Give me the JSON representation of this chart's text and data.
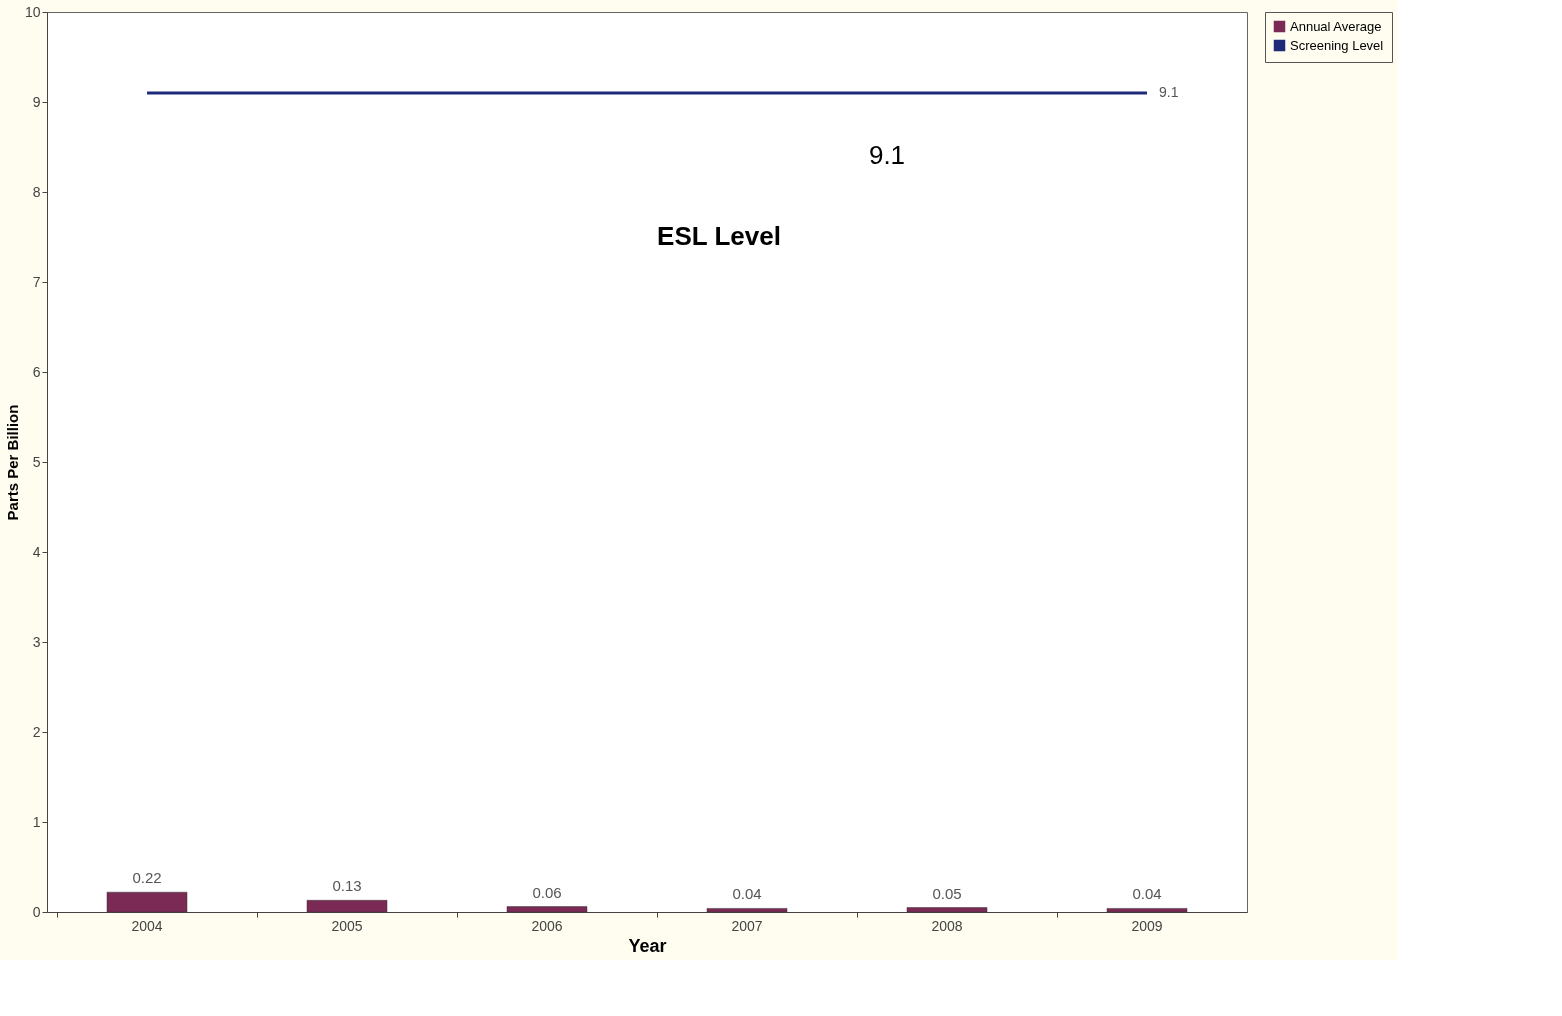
{
  "chart_data": {
    "type": "bar",
    "xlabel": "Year",
    "ylabel": "Parts Per Billion",
    "categories": [
      "2004",
      "2005",
      "2006",
      "2007",
      "2008",
      "2009"
    ],
    "series": [
      {
        "name": "Annual Average",
        "color": "#7b2a55",
        "values": [
          0.22,
          0.13,
          0.06,
          0.04,
          0.05,
          0.04
        ],
        "value_labels": [
          "0.22",
          "0.13",
          "0.06",
          "0.04",
          "0.05",
          "0.04"
        ]
      },
      {
        "name": "Screening Level",
        "type": "line",
        "color": "#1f2a78",
        "values": [
          9.1,
          9.1,
          9.1,
          9.1,
          9.1,
          9.1
        ],
        "value_labels": [
          null,
          null,
          null,
          null,
          null,
          "9.1"
        ]
      }
    ],
    "annotations": [
      "9.1",
      "ESL Level"
    ],
    "ylim": [
      0,
      10
    ],
    "yticks": [
      0,
      1,
      2,
      3,
      4,
      5,
      6,
      7,
      8,
      9,
      10
    ],
    "grid": false,
    "legend": "right"
  }
}
